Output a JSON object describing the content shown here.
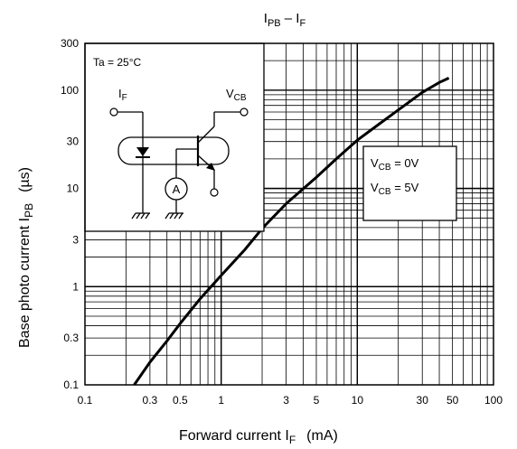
{
  "chart_data": {
    "type": "line",
    "title": {
      "main": "I",
      "sub1": "PB",
      "sep": " – I",
      "sub2": "F"
    },
    "xlabel": {
      "main": "Forward current   I",
      "sub": "F",
      "unit": "(mA)"
    },
    "ylabel": {
      "main": "Base photo current   I",
      "sub": "PB",
      "unit": "(µs)"
    },
    "xscale": "log",
    "yscale": "log",
    "xlim": [
      0.1,
      100
    ],
    "ylim": [
      0.1,
      300
    ],
    "x_ticks": [
      "0.1",
      "0.3",
      "0.5",
      "1",
      "3",
      "5",
      "10",
      "30",
      "50",
      "100"
    ],
    "y_ticks": [
      "0.1",
      "0.3",
      "1",
      "3",
      "10",
      "30",
      "100",
      "300"
    ],
    "grid": true,
    "series": [
      {
        "x": [
          0.23,
          0.3,
          0.4,
          0.5,
          0.7,
          1,
          1.5,
          2,
          3,
          5,
          7,
          10,
          15,
          20,
          30,
          40,
          47
        ],
        "y": [
          0.1,
          0.17,
          0.28,
          0.42,
          0.75,
          1.3,
          2.4,
          3.9,
          7,
          13,
          20,
          31,
          47,
          63,
          95,
          120,
          133
        ]
      }
    ],
    "annotations": {
      "condition": "Ta = 25°C",
      "legend_lines": [
        {
          "main": "V",
          "sub": "CB",
          "rest": " = 0V"
        },
        {
          "main": "V",
          "sub": "CB",
          "rest": " = 5V"
        }
      ],
      "circuit": {
        "if_label": {
          "main": "I",
          "sub": "F"
        },
        "vcb_label": {
          "main": "V",
          "sub": "CB"
        },
        "ammeter_label": "A"
      }
    }
  }
}
